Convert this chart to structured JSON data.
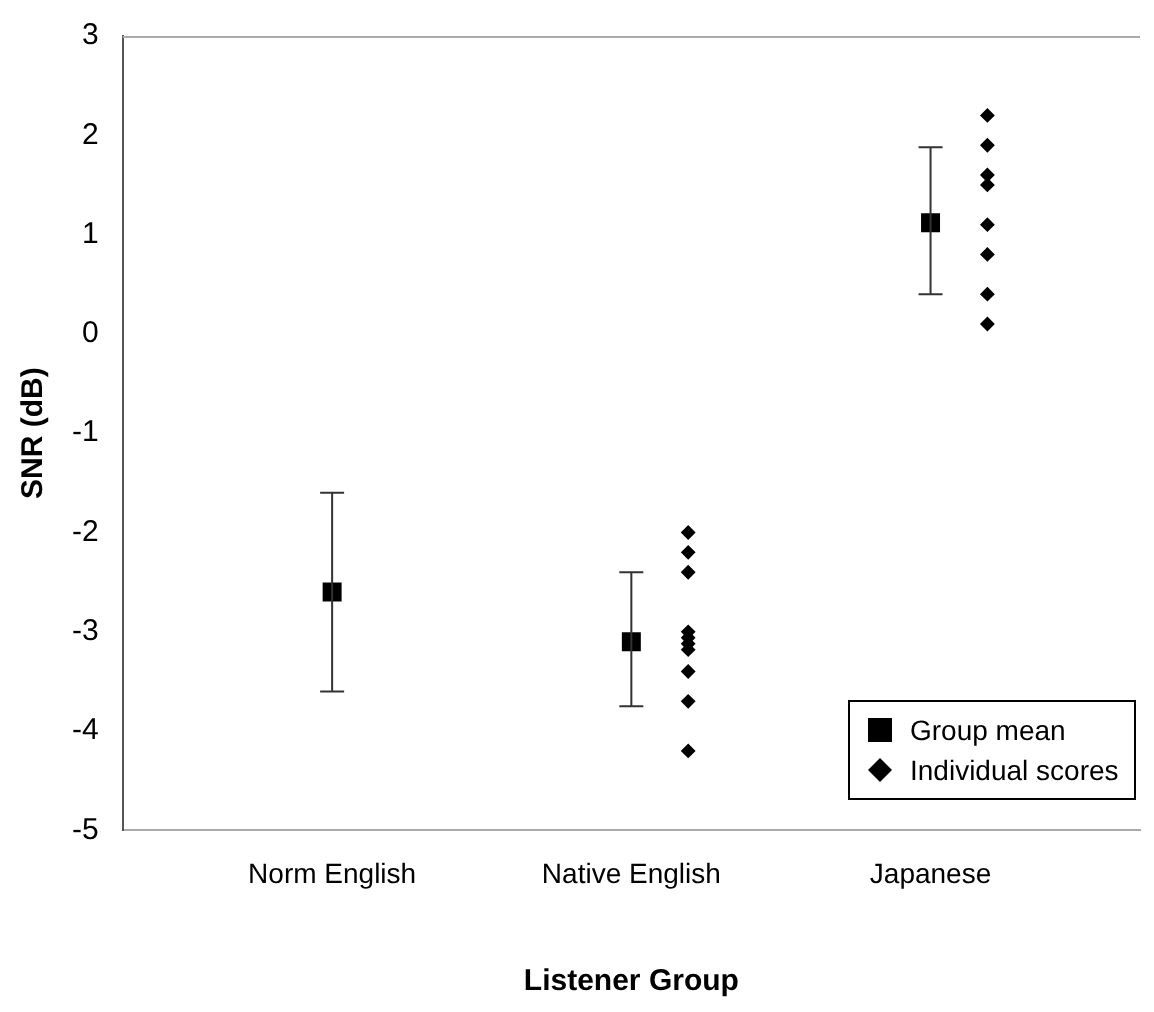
{
  "chart_data": {
    "type": "scatter",
    "xlabel": "Listener Group",
    "ylabel": "SNR (dB)",
    "categories": [
      "Norm English",
      "Native English",
      "Japanese"
    ],
    "ylim": [
      -5,
      3
    ],
    "yticks": [
      -5,
      -4,
      -3,
      -2,
      -1,
      0,
      1,
      2,
      3
    ],
    "grid": false,
    "legend": "bottom right",
    "series": [
      {
        "name": "Group mean",
        "marker": "square",
        "color": "#000000",
        "x": [
          "Norm English",
          "Native English",
          "Japanese"
        ],
        "values": [
          -2.6,
          -3.1,
          1.12
        ],
        "errors": [
          [
            -3.6,
            -1.6
          ],
          [
            -3.75,
            -2.4
          ],
          [
            0.4,
            1.88
          ]
        ]
      },
      {
        "name": "Individual scores",
        "marker": "diamond",
        "color": "#000000",
        "x": [
          "Native English",
          "Native English",
          "Native English",
          "Native English",
          "Native English",
          "Native English",
          "Native English",
          "Native English",
          "Native English",
          "Native English",
          "Japanese",
          "Japanese",
          "Japanese",
          "Japanese",
          "Japanese",
          "Japanese",
          "Japanese",
          "Japanese"
        ],
        "values": [
          -2.0,
          -2.2,
          -2.4,
          -3.0,
          -3.06,
          -3.12,
          -3.18,
          -3.4,
          -3.7,
          -4.2,
          2.2,
          1.9,
          1.6,
          1.5,
          1.1,
          0.8,
          0.4,
          0.1
        ]
      }
    ]
  }
}
